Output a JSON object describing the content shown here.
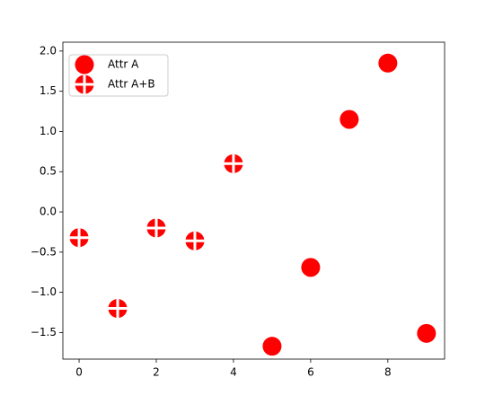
{
  "chart_data": {
    "type": "scatter",
    "series": [
      {
        "name": "Attr A",
        "color": "#ff0000",
        "marker": "circle",
        "x": [
          5,
          6,
          7,
          8,
          9
        ],
        "values": [
          -1.67,
          -0.69,
          1.15,
          1.85,
          -1.51
        ]
      },
      {
        "name": "Attr A+B",
        "color": "#ff0000",
        "marker": "circle-plus",
        "x": [
          0,
          1,
          2,
          3,
          4
        ],
        "values": [
          -0.32,
          -1.2,
          -0.2,
          -0.36,
          0.6
        ]
      }
    ],
    "xlim": [
      -0.42,
      9.47
    ],
    "ylim": [
      -1.83,
      2.11
    ],
    "xticks": [
      0,
      2,
      4,
      6,
      8
    ],
    "yticks": [
      {
        "value": -1.5,
        "label": "−1.5"
      },
      {
        "value": -1.0,
        "label": "−1.0"
      },
      {
        "value": -0.5,
        "label": "−0.5"
      },
      {
        "value": 0,
        "label": "0.0"
      },
      0.5,
      {
        "value": 1.0,
        "label": "1.0"
      },
      1.5,
      {
        "value": 2.0,
        "label": "2.0"
      }
    ],
    "legend": "upper left",
    "grid": false
  }
}
